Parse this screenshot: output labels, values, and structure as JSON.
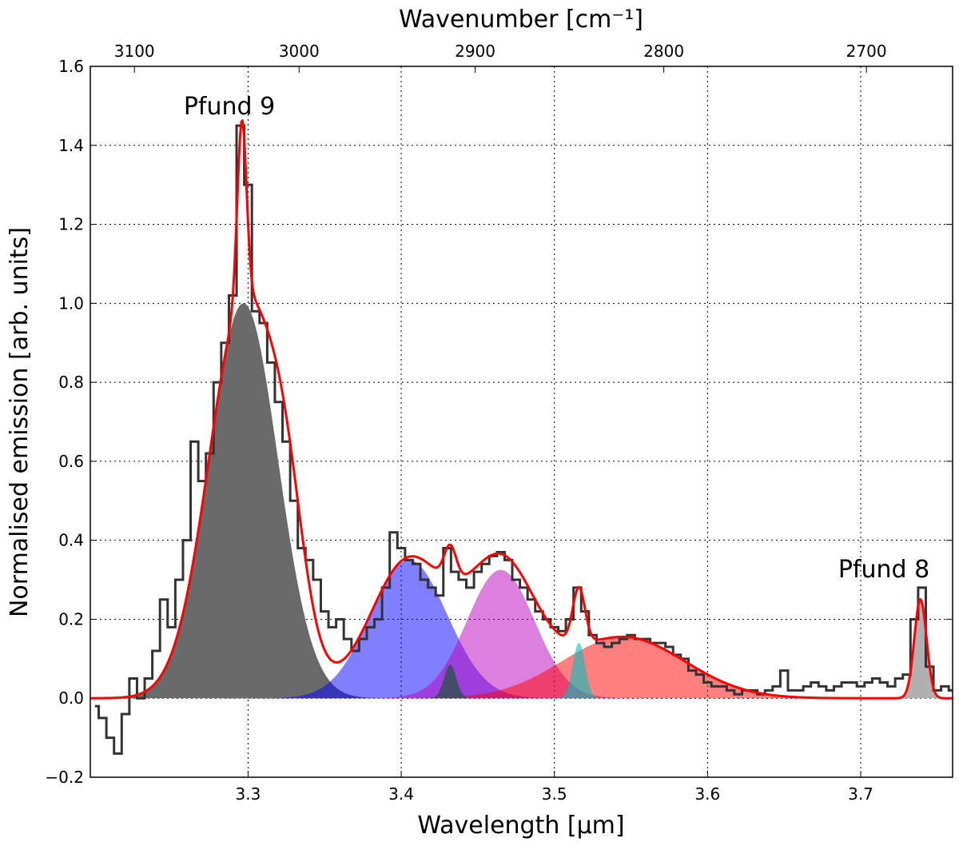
{
  "chart_data": {
    "type": "spectrum-fit",
    "xlabel": "Wavelength [μm]",
    "ylabel": "Normalised emission [arb. units]",
    "x2label": "Wavenumber [cm⁻¹]",
    "annotations": [
      "Pfund 9",
      "Pfund 8"
    ],
    "xlim": [
      3.197,
      3.76
    ],
    "ylim": [
      -0.2,
      1.6
    ],
    "xticks": [
      3.3,
      3.4,
      3.5,
      3.6,
      3.7
    ],
    "yticks": [
      {
        "value": -0.2,
        "label": "−0.2"
      },
      {
        "value": 0,
        "label": "0.0"
      },
      0.2,
      0.4,
      0.6,
      0.8,
      {
        "value": 1,
        "label": "1.0"
      },
      1.2,
      1.4,
      1.6
    ],
    "x2ticks": [
      3100,
      3000,
      2900,
      2800,
      2700
    ],
    "grid": true,
    "observed": {
      "color": "#333333",
      "x": [
        3.2,
        3.205,
        3.21,
        3.215,
        3.22,
        3.225,
        3.23,
        3.235,
        3.24,
        3.245,
        3.25,
        3.255,
        3.26,
        3.265,
        3.27,
        3.275,
        3.28,
        3.285,
        3.29,
        3.295,
        3.3,
        3.305,
        3.31,
        3.315,
        3.32,
        3.325,
        3.33,
        3.335,
        3.34,
        3.345,
        3.35,
        3.355,
        3.36,
        3.365,
        3.37,
        3.375,
        3.38,
        3.385,
        3.39,
        3.395,
        3.4,
        3.405,
        3.41,
        3.415,
        3.42,
        3.425,
        3.43,
        3.435,
        3.44,
        3.445,
        3.45,
        3.455,
        3.46,
        3.465,
        3.47,
        3.475,
        3.48,
        3.485,
        3.49,
        3.495,
        3.5,
        3.505,
        3.51,
        3.515,
        3.52,
        3.525,
        3.53,
        3.535,
        3.54,
        3.545,
        3.55,
        3.555,
        3.56,
        3.565,
        3.57,
        3.575,
        3.58,
        3.585,
        3.59,
        3.595,
        3.6,
        3.605,
        3.61,
        3.615,
        3.62,
        3.625,
        3.63,
        3.635,
        3.64,
        3.645,
        3.65,
        3.655,
        3.66,
        3.665,
        3.67,
        3.675,
        3.68,
        3.685,
        3.69,
        3.695,
        3.7,
        3.705,
        3.71,
        3.715,
        3.72,
        3.725,
        3.73,
        3.735,
        3.74,
        3.745,
        3.75,
        3.755,
        3.76
      ],
      "values": [
        -0.02,
        -0.05,
        -0.1,
        -0.14,
        -0.04,
        0.05,
        0,
        0.05,
        0.12,
        0.25,
        0.18,
        0.3,
        0.4,
        0.65,
        0.55,
        0.62,
        0.8,
        0.9,
        1.02,
        1.45,
        1.3,
        0.98,
        0.95,
        0.85,
        0.75,
        0.65,
        0.5,
        0.38,
        0.35,
        0.3,
        0.22,
        0.18,
        0.2,
        0.15,
        0.12,
        0.15,
        0.18,
        0.2,
        0.28,
        0.42,
        0.38,
        0.35,
        0.34,
        0.3,
        0.28,
        0.26,
        0.38,
        0.32,
        0.3,
        0.28,
        0.32,
        0.34,
        0.36,
        0.37,
        0.35,
        0.3,
        0.28,
        0.25,
        0.22,
        0.2,
        0.18,
        0.17,
        0.2,
        0.28,
        0.22,
        0.16,
        0.14,
        0.13,
        0.14,
        0.15,
        0.16,
        0.15,
        0.15,
        0.14,
        0.14,
        0.13,
        0.11,
        0.1,
        0.07,
        0.06,
        0.04,
        0.03,
        0.03,
        0.02,
        0.01,
        0.02,
        0.02,
        0.01,
        0.02,
        0.03,
        0.07,
        0.02,
        0.02,
        0.03,
        0.04,
        0.03,
        0.02,
        0.03,
        0.04,
        0.04,
        0.03,
        0.04,
        0.05,
        0.04,
        0.03,
        0.05,
        0.06,
        0.2,
        0.28,
        0.08,
        0.02,
        0.03,
        0.02
      ]
    },
    "fit_color": "#ff0000",
    "components": [
      {
        "center": 3.297,
        "amplitude": 1.0,
        "sigma": 0.0225,
        "color": "#6a6a6a"
      },
      {
        "center": 3.296,
        "amplitude": 0.45,
        "sigma": 0.003,
        "color": "#6a6a6a"
      },
      {
        "center": 3.325,
        "amplitude": 0.25,
        "sigma": 0.012,
        "color": "#6a6a6a"
      },
      {
        "center": 3.405,
        "amplitude": 0.35,
        "sigma": 0.025,
        "color": "#0000ff80"
      },
      {
        "center": 3.465,
        "amplitude": 0.325,
        "sigma": 0.022,
        "color": "#bb00bb80"
      },
      {
        "center": 3.545,
        "amplitude": 0.155,
        "sigma": 0.04,
        "color": "#ff000080"
      },
      {
        "center": 3.432,
        "amplitude": 0.085,
        "sigma": 0.004,
        "color": "#2f4f4fcc"
      },
      {
        "center": 3.516,
        "amplitude": 0.14,
        "sigma": 0.004,
        "color": "#00bfbf99"
      },
      {
        "center": 3.739,
        "amplitude": 0.25,
        "sigma": 0.004,
        "color": "#b0b0b0"
      }
    ]
  }
}
